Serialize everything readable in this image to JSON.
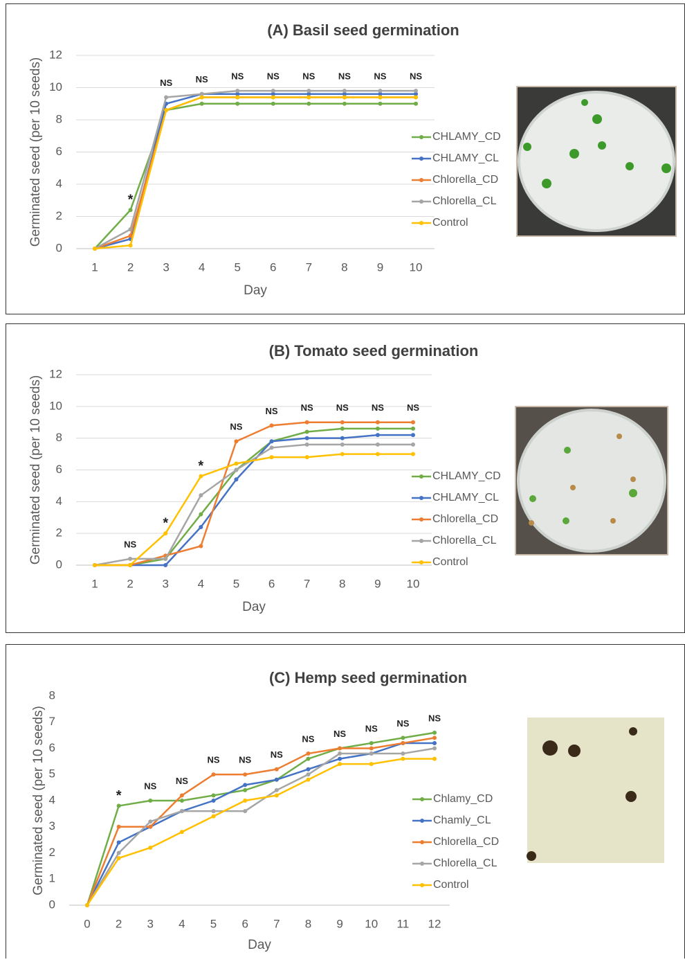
{
  "chart_data": [
    {
      "type": "line",
      "title": "(A) Basil seed germination",
      "x_label": "Day",
      "y_label": "Germinated seed (per 10 seeds)",
      "categories": [
        "1",
        "2",
        "3",
        "4",
        "5",
        "6",
        "7",
        "8",
        "9",
        "10"
      ],
      "ylim": [
        0,
        12
      ],
      "yticks": [
        0,
        2,
        4,
        6,
        8,
        10,
        12
      ],
      "grid": true,
      "annotations": [
        null,
        "*",
        "NS",
        "NS",
        "NS",
        "NS",
        "NS",
        "NS",
        "NS",
        "NS"
      ],
      "series": [
        {
          "name": "CHLAMY_CD",
          "color": "#70ad47",
          "values": [
            0,
            2.4,
            8.6,
            9,
            9,
            9,
            9,
            9,
            9,
            9
          ]
        },
        {
          "name": "CHLAMY_CL",
          "color": "#4472c4",
          "values": [
            0,
            0.6,
            9,
            9.6,
            9.6,
            9.6,
            9.6,
            9.6,
            9.6,
            9.6
          ]
        },
        {
          "name": "Chlorella_CD",
          "color": "#ed7d31",
          "values": [
            0,
            0.8,
            8.6,
            9.4,
            9.4,
            9.4,
            9.4,
            9.4,
            9.4,
            9.4
          ]
        },
        {
          "name": "Chlorella_CL",
          "color": "#a5a5a5",
          "values": [
            0,
            1.2,
            9.4,
            9.6,
            9.8,
            9.8,
            9.8,
            9.8,
            9.8,
            9.8
          ]
        },
        {
          "name": "Control",
          "color": "#ffc000",
          "values": [
            0,
            0.2,
            8.6,
            9.4,
            9.4,
            9.4,
            9.4,
            9.4,
            9.4,
            9.4
          ]
        }
      ]
    },
    {
      "type": "line",
      "title": "(B) Tomato seed germination",
      "x_label": "Day",
      "y_label": "Germinated seed (per 10 seeds)",
      "categories": [
        "1",
        "2",
        "3",
        "4",
        "5",
        "6",
        "7",
        "8",
        "9",
        "10"
      ],
      "ylim": [
        0,
        12
      ],
      "yticks": [
        0,
        2,
        4,
        6,
        8,
        10,
        12
      ],
      "grid": true,
      "annotations": [
        null,
        "NS",
        "*",
        "*",
        "NS",
        "NS",
        "NS",
        "NS",
        "NS",
        "NS"
      ],
      "series": [
        {
          "name": "CHLAMY_CD",
          "color": "#70ad47",
          "values": [
            0,
            0,
            0.4,
            3.2,
            6,
            7.8,
            8.4,
            8.6,
            8.6,
            8.6
          ]
        },
        {
          "name": "CHLAMY_CL",
          "color": "#4472c4",
          "values": [
            0,
            0,
            0,
            2.4,
            5.4,
            7.8,
            8,
            8,
            8.2,
            8.2
          ]
        },
        {
          "name": "Chlorella_CD",
          "color": "#ed7d31",
          "values": [
            0,
            0,
            0.6,
            1.2,
            7.8,
            8.8,
            9,
            9,
            9,
            9
          ]
        },
        {
          "name": "Chlorella_CL",
          "color": "#a5a5a5",
          "values": [
            0,
            0.4,
            0.4,
            4.4,
            6,
            7.4,
            7.6,
            7.6,
            7.6,
            7.6
          ]
        },
        {
          "name": "Control",
          "color": "#ffc000",
          "values": [
            0,
            0,
            2,
            5.6,
            6.4,
            6.8,
            6.8,
            7,
            7,
            7
          ]
        }
      ]
    },
    {
      "type": "line",
      "title": "(C) Hemp seed germination",
      "x_label": "Day",
      "y_label": "Germinated seed (per 10 seeds)",
      "categories": [
        "0",
        "2",
        "3",
        "4",
        "5",
        "6",
        "7",
        "8",
        "9",
        "10",
        "11",
        "12"
      ],
      "ylim": [
        0,
        8
      ],
      "yticks": [
        0,
        1,
        2,
        3,
        4,
        5,
        6,
        7,
        8
      ],
      "grid": false,
      "annotations": [
        null,
        "*",
        "NS",
        "NS",
        "NS",
        "NS",
        "NS",
        "NS",
        "NS",
        "NS",
        "NS",
        "NS"
      ],
      "series": [
        {
          "name": "Chlamy_CD",
          "color": "#70ad47",
          "values": [
            0,
            3.8,
            4,
            4,
            4.2,
            4.4,
            4.8,
            5.6,
            6,
            6.2,
            6.4,
            6.6
          ]
        },
        {
          "name": "Chamly_CL",
          "color": "#4472c4",
          "values": [
            0,
            2.4,
            3,
            3.6,
            4,
            4.6,
            4.8,
            5.2,
            5.6,
            5.8,
            6.2,
            6.2
          ]
        },
        {
          "name": "Chlorella_CD",
          "color": "#ed7d31",
          "values": [
            0,
            3,
            3,
            4.2,
            5,
            5,
            5.2,
            5.8,
            6,
            6,
            6.2,
            6.4
          ]
        },
        {
          "name": "Chlorella_CL",
          "color": "#a5a5a5",
          "values": [
            0,
            2,
            3.2,
            3.6,
            3.6,
            3.6,
            4.4,
            5,
            5.8,
            5.8,
            5.8,
            6
          ]
        },
        {
          "name": "Control",
          "color": "#ffc000",
          "values": [
            0,
            1.8,
            2.2,
            2.8,
            3.4,
            4,
            4.2,
            4.8,
            5.4,
            5.4,
            5.6,
            5.6
          ]
        }
      ]
    }
  ]
}
